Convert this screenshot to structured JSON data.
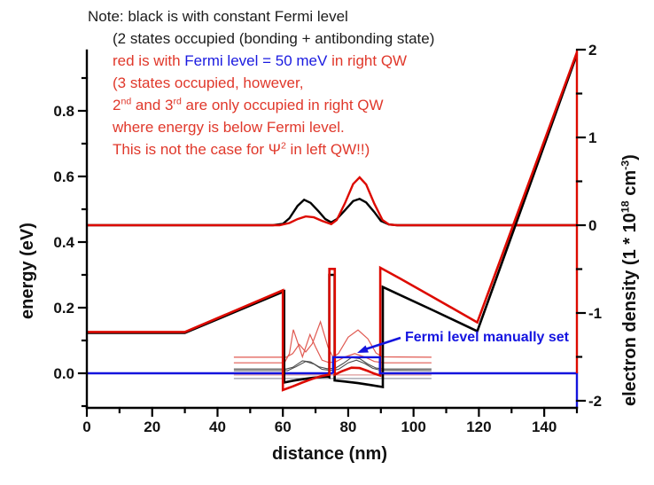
{
  "colors": {
    "curve_red": "#dd0a00",
    "curve_black": "#000000",
    "curve_blue": "#1414dd",
    "thin_red": "#e05a52",
    "thin_black": "#4a4a4a",
    "pale_pink": "#dd9a9a",
    "pale_gray": "#9a9aa6",
    "axis_black": "#000000"
  },
  "note": {
    "line1": "Note: black is with constant Fermi level",
    "line2": "(2 states occupied (bonding + antibonding state)",
    "line3_red_prefix": "red is with ",
    "line3_blue": "Fermi level = 50 meV",
    "line3_red_suffix": " in right QW",
    "line4": "(3 states occupied, however,",
    "line5_a": "2",
    "line5_sup1": "nd",
    "line5_b": " and 3",
    "line5_sup2": "rd",
    "line5_c": " are only occupied in right QW",
    "line6": "where energy is below Fermi level.",
    "line7_a": "This is not the case for ",
    "line7_psi": "Ψ",
    "line7_sup": "2",
    "line7_b": " in left QW!!)"
  },
  "annotation": {
    "fermi_label": "Fermi level manually set"
  },
  "chart_data": {
    "type": "line",
    "xlabel": "distance (nm)",
    "ylabel_left": "energy (eV)",
    "ylabel_right_parts": {
      "p1": "electron density (1 * 10",
      "sup1": "18",
      "p2": " cm",
      "sup2": "-3",
      "p3": ")"
    },
    "x_axis": {
      "range": [
        0,
        150
      ],
      "major_ticks": [
        0,
        20,
        40,
        60,
        80,
        100,
        120,
        140
      ],
      "major_labels": [
        "0",
        "20",
        "40",
        "60",
        "80",
        "100",
        "120",
        "140"
      ],
      "minor_ticks": [
        10,
        30,
        50,
        70,
        90,
        110,
        130,
        150
      ]
    },
    "y_left": {
      "range": [
        -0.105,
        0.984
      ],
      "major_ticks": [
        0.0,
        0.2,
        0.4,
        0.6,
        0.8
      ],
      "major_labels": [
        "0.0",
        "0.2",
        "0.4",
        "0.6",
        "0.8"
      ],
      "minor_ticks": [
        -0.1,
        0.1,
        0.3,
        0.5,
        0.7,
        0.9
      ]
    },
    "y_right": {
      "range": [
        -2.08,
        1.99
      ],
      "major_ticks": [
        2,
        1,
        0,
        -1,
        -2
      ],
      "major_labels": [
        "2",
        "1",
        "0",
        "-1",
        "-2"
      ],
      "minor_ticks": [
        1.5,
        0.5,
        -0.5,
        -1.5
      ]
    },
    "series": [
      {
        "name": "psi-baseline-pink",
        "axis": "energy",
        "color": "pale_pink",
        "width": 1.2,
        "points": [
          [
            45,
            -0.005
          ],
          [
            105.5,
            -0.005
          ]
        ]
      },
      {
        "name": "psi-baseline-gray",
        "axis": "energy",
        "color": "pale_gray",
        "width": 1.2,
        "points": [
          [
            45,
            -0.016
          ],
          [
            105.5,
            -0.016
          ]
        ]
      },
      {
        "name": "psi2-black-bonding",
        "axis": "energy",
        "color": "thin_black",
        "width": 1.1,
        "points": [
          [
            45,
            0.013
          ],
          [
            61,
            0.013
          ],
          [
            63,
            0.018
          ],
          [
            66,
            0.038
          ],
          [
            68.5,
            0.035
          ],
          [
            71,
            0.02
          ],
          [
            73.5,
            0.014
          ],
          [
            76,
            0.015
          ],
          [
            78.5,
            0.03
          ],
          [
            81,
            0.048
          ],
          [
            83.5,
            0.045
          ],
          [
            86,
            0.028
          ],
          [
            88.5,
            0.016
          ],
          [
            91,
            0.013
          ],
          [
            105.5,
            0.013
          ]
        ]
      },
      {
        "name": "psi2-black-antibonding",
        "axis": "energy",
        "color": "thin_black",
        "width": 1.1,
        "points": [
          [
            45,
            0.008
          ],
          [
            61.5,
            0.008
          ],
          [
            64,
            0.02
          ],
          [
            67,
            0.036
          ],
          [
            69.5,
            0.028
          ],
          [
            72,
            0.012
          ],
          [
            74.5,
            0.009
          ],
          [
            77,
            0.012
          ],
          [
            80,
            0.032
          ],
          [
            82.5,
            0.04
          ],
          [
            85,
            0.03
          ],
          [
            87.5,
            0.015
          ],
          [
            90,
            0.009
          ],
          [
            105.5,
            0.008
          ]
        ]
      },
      {
        "name": "psi2-red-2nd",
        "axis": "energy",
        "color": "thin_red",
        "width": 1.2,
        "points": [
          [
            45,
            0.032
          ],
          [
            60.5,
            0.032
          ],
          [
            62,
            0.06
          ],
          [
            63.2,
            0.133
          ],
          [
            64.5,
            0.095
          ],
          [
            66,
            0.05
          ],
          [
            67,
            0.08
          ],
          [
            68.3,
            0.118
          ],
          [
            70,
            0.08
          ],
          [
            72,
            0.04
          ],
          [
            74,
            0.033
          ],
          [
            76,
            0.034
          ],
          [
            79,
            0.05
          ],
          [
            82,
            0.06
          ],
          [
            85,
            0.05
          ],
          [
            88,
            0.036
          ],
          [
            91,
            0.032
          ],
          [
            105.5,
            0.032
          ]
        ]
      },
      {
        "name": "psi2-red-3rd",
        "axis": "energy",
        "color": "thin_red",
        "width": 1.2,
        "points": [
          [
            45,
            0.049
          ],
          [
            61,
            0.049
          ],
          [
            63,
            0.06
          ],
          [
            65,
            0.088
          ],
          [
            67,
            0.065
          ],
          [
            69,
            0.09
          ],
          [
            71.5,
            0.157
          ],
          [
            73.8,
            0.08
          ],
          [
            75.3,
            0.05
          ],
          [
            77,
            0.06
          ],
          [
            80,
            0.11
          ],
          [
            83,
            0.132
          ],
          [
            86,
            0.105
          ],
          [
            88.5,
            0.062
          ],
          [
            90.5,
            0.05
          ],
          [
            105.5,
            0.049
          ]
        ]
      },
      {
        "name": "fermi-level-left",
        "axis": "energy",
        "color": "curve_blue",
        "width": 2.4,
        "points": [
          [
            0,
            0
          ],
          [
            75.35,
            0
          ]
        ]
      },
      {
        "name": "electron-density-black",
        "axis": "density",
        "color": "curve_black",
        "width": 2.4,
        "points": [
          [
            0,
            0
          ],
          [
            57,
            0
          ],
          [
            60,
            0.015
          ],
          [
            62,
            0.08
          ],
          [
            64.5,
            0.22
          ],
          [
            66.5,
            0.29
          ],
          [
            68.5,
            0.255
          ],
          [
            71,
            0.155
          ],
          [
            73,
            0.07
          ],
          [
            74.8,
            0.032
          ],
          [
            76.5,
            0.07
          ],
          [
            79,
            0.17
          ],
          [
            81.5,
            0.275
          ],
          [
            83.5,
            0.3
          ],
          [
            85.5,
            0.26
          ],
          [
            88,
            0.15
          ],
          [
            90,
            0.05
          ],
          [
            92.5,
            0.008
          ],
          [
            95,
            0
          ],
          [
            150,
            0
          ]
        ]
      },
      {
        "name": "electron-density-red",
        "axis": "density",
        "color": "curve_red",
        "width": 2.4,
        "points": [
          [
            0,
            0
          ],
          [
            59,
            0
          ],
          [
            62,
            0.025
          ],
          [
            64.5,
            0.07
          ],
          [
            67,
            0.1
          ],
          [
            69.5,
            0.09
          ],
          [
            72,
            0.05
          ],
          [
            74.8,
            0.012
          ],
          [
            76.5,
            0.06
          ],
          [
            79,
            0.25
          ],
          [
            81.5,
            0.47
          ],
          [
            83.5,
            0.545
          ],
          [
            85.5,
            0.465
          ],
          [
            88,
            0.245
          ],
          [
            90.5,
            0.06
          ],
          [
            92.5,
            0.008
          ],
          [
            95,
            0
          ],
          [
            150,
            0
          ]
        ]
      },
      {
        "name": "band-edge-black",
        "axis": "energy",
        "color": "curve_black",
        "width": 2.6,
        "points": [
          [
            0,
            0.123
          ],
          [
            30,
            0.123
          ],
          [
            60.4,
            0.25
          ],
          [
            60.4,
            -0.028
          ],
          [
            63,
            -0.023
          ],
          [
            66,
            -0.018
          ],
          [
            69,
            -0.014
          ],
          [
            72,
            -0.011
          ],
          [
            73.9,
            -0.01
          ],
          [
            74.2,
            -0.012
          ],
          [
            74.2,
            0.3
          ],
          [
            75.85,
            0.3
          ],
          [
            75.85,
            -0.022
          ],
          [
            79,
            -0.025
          ],
          [
            83,
            -0.03
          ],
          [
            87,
            -0.036
          ],
          [
            90.6,
            -0.042
          ],
          [
            90.6,
            0.263
          ],
          [
            96,
            0.238
          ],
          [
            106,
            0.192
          ],
          [
            119.5,
            0.128
          ],
          [
            150,
            0.972
          ]
        ]
      },
      {
        "name": "band-edge-red",
        "axis": "energy",
        "color": "curve_red",
        "width": 2.6,
        "points": [
          [
            0,
            0.126
          ],
          [
            30,
            0.126
          ],
          [
            60,
            0.253
          ],
          [
            60,
            -0.051
          ],
          [
            63,
            -0.04
          ],
          [
            66,
            -0.028
          ],
          [
            69,
            -0.017
          ],
          [
            72,
            -0.008
          ],
          [
            74.25,
            -0.004
          ],
          [
            74.25,
            0.318
          ],
          [
            75.9,
            0.318
          ],
          [
            75.9,
            -0.004
          ],
          [
            78,
            0.006
          ],
          [
            81,
            0.017
          ],
          [
            83.5,
            0.016
          ],
          [
            86,
            0.007
          ],
          [
            88,
            -0.001
          ],
          [
            89.8,
            -0.007
          ],
          [
            89.8,
            0.322
          ],
          [
            96,
            0.288
          ],
          [
            106,
            0.232
          ],
          [
            119.5,
            0.155
          ],
          [
            150,
            0.978
          ]
        ]
      },
      {
        "name": "fermi-level-step",
        "axis": "energy",
        "color": "curve_blue",
        "width": 2.4,
        "points": [
          [
            75.35,
            0
          ],
          [
            75.35,
            0.049
          ],
          [
            89.7,
            0.049
          ],
          [
            89.7,
            0
          ],
          [
            150,
            0
          ],
          [
            150,
            -0.105
          ]
        ]
      },
      {
        "name": "right-spine-red",
        "axis": "energy",
        "color": "curve_red",
        "width": 2.4,
        "points": [
          [
            150,
            0.984
          ],
          [
            150,
            0
          ]
        ]
      }
    ],
    "fermi_level_meV": 50,
    "legend_position": "none",
    "grid": false
  }
}
